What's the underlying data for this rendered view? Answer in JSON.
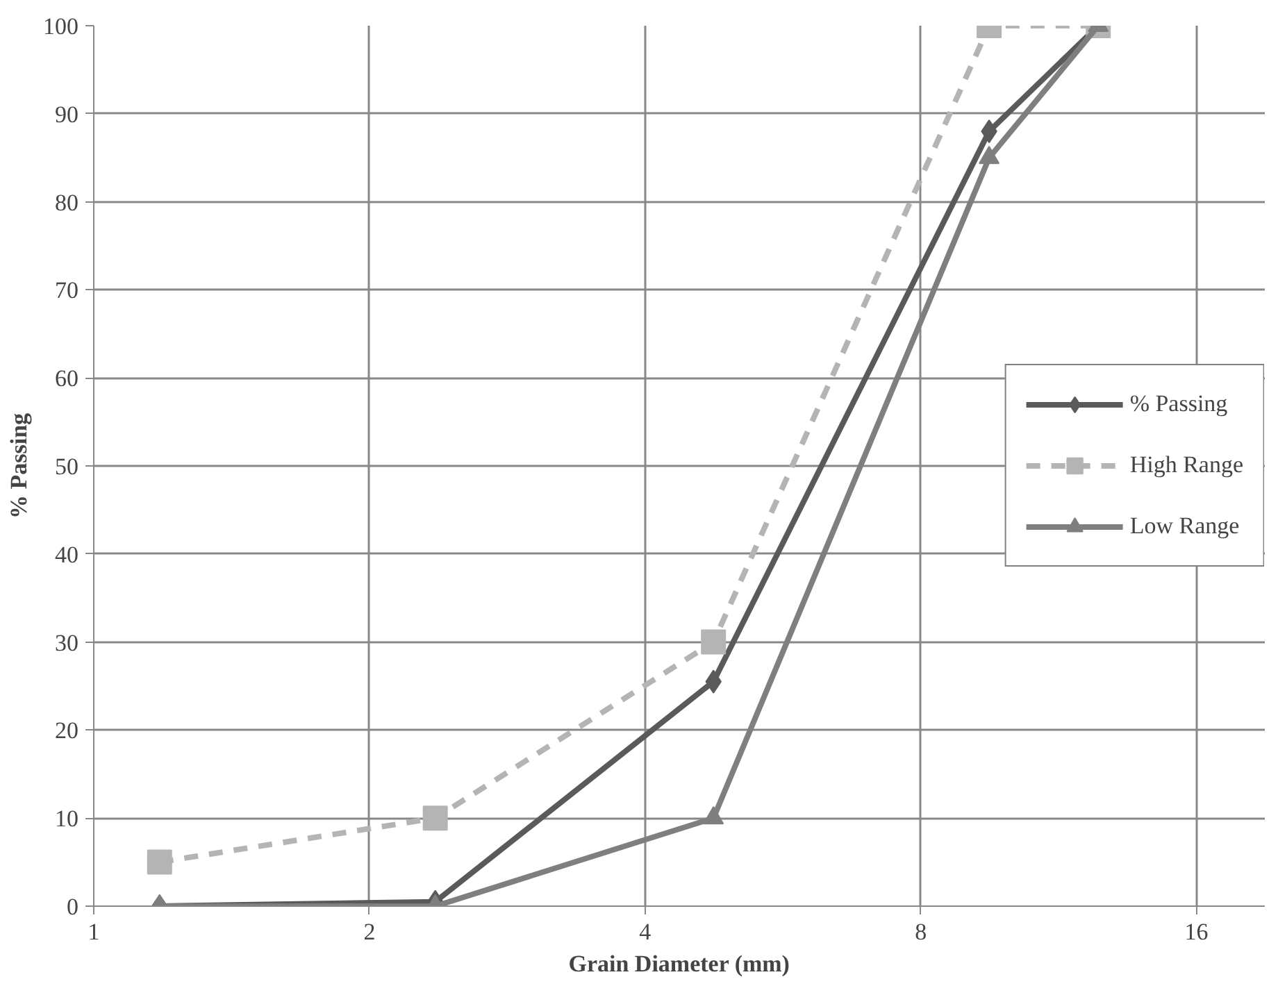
{
  "chart_data": {
    "type": "line",
    "xlabel": "Grain Diameter (mm)",
    "ylabel": "% Passing",
    "x": [
      1.18,
      2.36,
      4.75,
      9.5,
      12.5
    ],
    "series": [
      {
        "name": "% Passing",
        "color": "#5a5a5a",
        "marker": "diamond",
        "line_style": "solid",
        "values": [
          0,
          0.5,
          25.5,
          88,
          100
        ]
      },
      {
        "name": "High Range",
        "color": "#b4b4b4",
        "marker": "square",
        "line_style": "dashed",
        "values": [
          5,
          10,
          30,
          100,
          100
        ]
      },
      {
        "name": "Low Range",
        "color": "#7f7f7f",
        "marker": "triangle",
        "line_style": "solid",
        "values": [
          0,
          0,
          10,
          85,
          100
        ]
      }
    ],
    "log": "x",
    "xlim": [
      1,
      19
    ],
    "xticks": [
      1,
      2,
      4,
      8,
      16
    ],
    "ylim": [
      0,
      100
    ],
    "yticks": [
      0,
      10,
      20,
      30,
      40,
      50,
      60,
      70,
      80,
      90,
      100
    ],
    "grid": true,
    "legend": "right"
  }
}
